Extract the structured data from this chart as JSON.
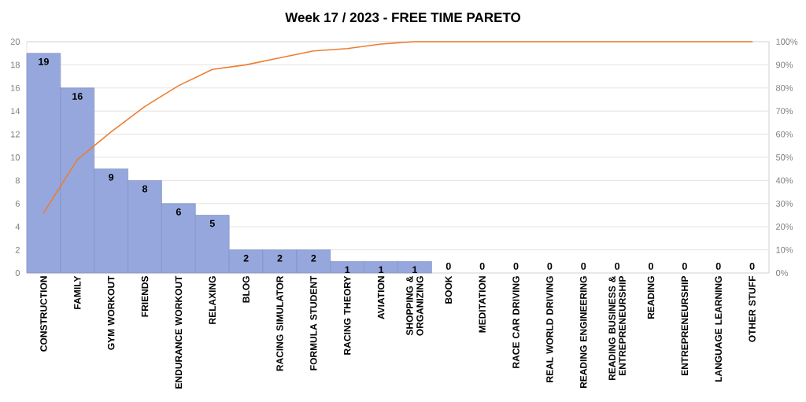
{
  "chart_data": {
    "type": "bar",
    "title": "Week 17 / 2023 - FREE TIME PARETO",
    "categories": [
      "CONSTRUCTION",
      "FAMILY",
      "GYM WORKOUT",
      "FRIENDS",
      "ENDURANCE WORKOUT",
      "RELAXING",
      "BLOG",
      "RACING SIMULATOR",
      "FORMULA STUDENT",
      "RACING THEORY",
      "AVIATION",
      "SHOPPING & ORGANIZING",
      "BOOK",
      "MEDITATION",
      "RACE CAR DRIVING",
      "REAL WORLD DRIVING",
      "READING ENGINEERING",
      "READING BUSINESS & ENTREPRENEURSHIP",
      "READING",
      "ENTREPRENEURSHIP",
      "LANGUAGE LEARNING",
      "OTHER STUFF"
    ],
    "series": [
      {
        "color": "#95a7dc",
        "values": [
          19,
          16,
          9,
          8,
          6,
          5,
          2,
          2,
          2,
          1,
          1,
          1,
          0,
          0,
          0,
          0,
          0,
          0,
          0,
          0,
          0,
          0
        ],
        "value_labels": [
          "19",
          "16",
          "9",
          "8",
          "6",
          "5",
          "2",
          "2",
          "2",
          "1",
          "1",
          "1",
          "0",
          "0",
          "0",
          "0",
          "0",
          "0",
          "0",
          "0",
          "0",
          "0"
        ]
      },
      {
        "type": "line",
        "axis": "y2",
        "color": "#ed7d31",
        "values": [
          26,
          49,
          61,
          72,
          81,
          88,
          90,
          93,
          96,
          97,
          99,
          100,
          100,
          100,
          100,
          100,
          100,
          100,
          100,
          100,
          100,
          100
        ]
      }
    ],
    "ylim": [
      0,
      20
    ],
    "yticks": [
      0,
      2,
      4,
      6,
      8,
      10,
      12,
      14,
      16,
      18,
      20
    ],
    "y2lim": [
      0,
      100
    ],
    "y2ticks": [
      {
        "value": 0,
        "label": "0%"
      },
      {
        "value": 10,
        "label": "10%"
      },
      {
        "value": 20,
        "label": "20%"
      },
      {
        "value": 30,
        "label": "30%"
      },
      {
        "value": 40,
        "label": "40%"
      },
      {
        "value": 50,
        "label": "50%"
      },
      {
        "value": 60,
        "label": "60%"
      },
      {
        "value": 70,
        "label": "70%"
      },
      {
        "value": 80,
        "label": "80%"
      },
      {
        "value": 90,
        "label": "90%"
      },
      {
        "value": 100,
        "label": "100%"
      }
    ],
    "grid": "y",
    "marker": "none"
  }
}
